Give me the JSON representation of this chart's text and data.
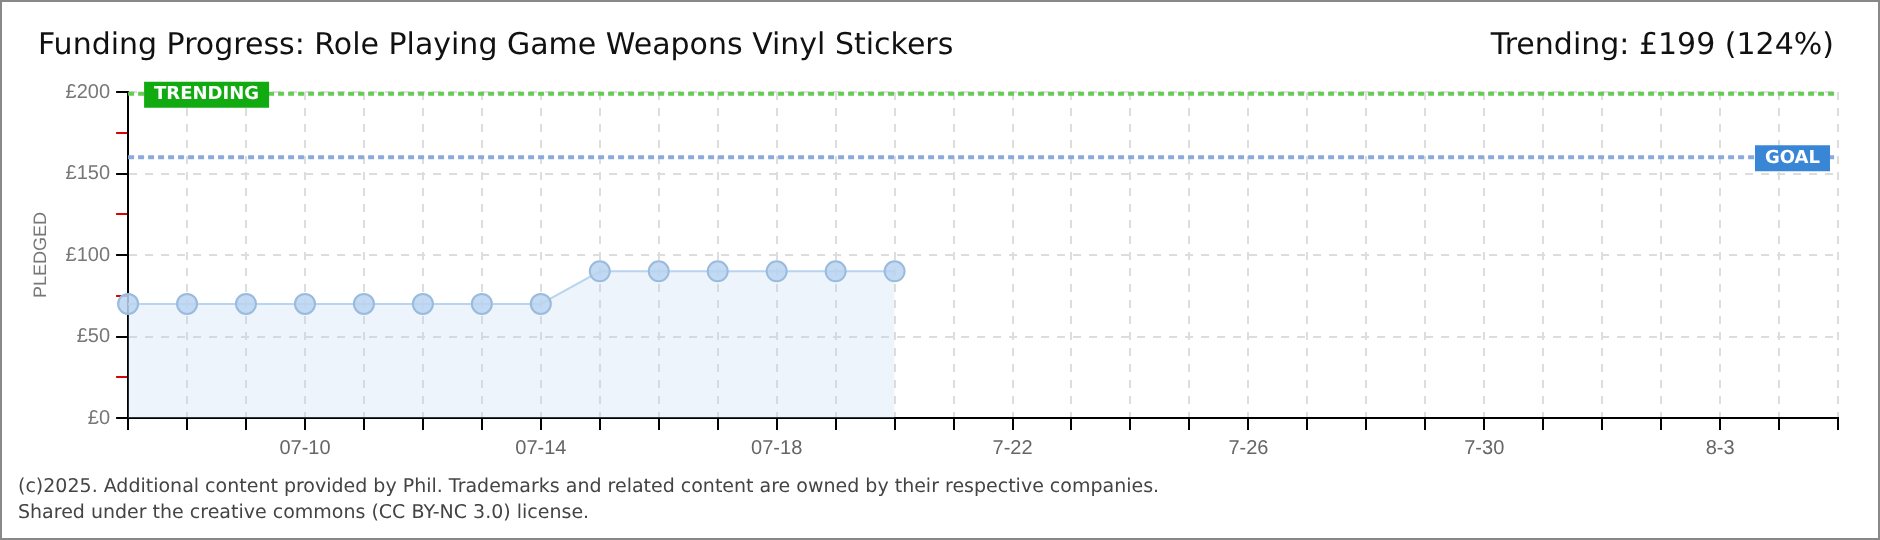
{
  "chart_data": {
    "type": "area",
    "title": "Funding Progress: Role Playing Game Weapons Vinyl Stickers",
    "subtitle": "Trending: £199 (124%)",
    "ylabel": "PLEDGED",
    "categories": [
      null,
      null,
      null,
      "07-10",
      null,
      null,
      null,
      "07-14",
      null,
      null,
      null,
      "07-18",
      null,
      null,
      null,
      "7-22",
      null,
      null,
      null,
      "7-26",
      null,
      null,
      null,
      "7-30",
      null,
      null,
      null,
      "8-3",
      null,
      null
    ],
    "series": [
      {
        "color": "#b8d4f0",
        "values": [
          70,
          70,
          70,
          70,
          70,
          70,
          70,
          70,
          90,
          90,
          90,
          90,
          90,
          90,
          null,
          null,
          null,
          null,
          null,
          null,
          null,
          null,
          null,
          null,
          null,
          null,
          null,
          null,
          null,
          null
        ]
      }
    ],
    "ylim": [
      0,
      200
    ],
    "yticks": [
      {
        "value": 0,
        "label": "£0"
      },
      {
        "value": 25,
        "label": null
      },
      {
        "value": 50,
        "label": "£50"
      },
      {
        "value": 75,
        "label": null
      },
      {
        "value": 100,
        "label": "£100"
      },
      {
        "value": 125,
        "label": null
      },
      {
        "value": 150,
        "label": "£150"
      },
      {
        "value": 175,
        "label": null
      },
      {
        "value": 200,
        "label": "£200"
      }
    ],
    "ref_lines": [
      {
        "axis": "y",
        "value": 199,
        "label": "TRENDING",
        "color": "#66cc55",
        "line_style": "dotted"
      },
      {
        "axis": "y",
        "value": 160,
        "label": "GOAL",
        "color": "#88aadd",
        "line_style": "dotted"
      }
    ],
    "grid": true,
    "legend": false,
    "marker": "circle",
    "line_style": "solid",
    "annotations": [
      "(c)2025. Additional content provided by Phil. Trademarks and related content are owned by their respective companies.",
      "Shared under the creative commons (CC BY-NC 3.0) license."
    ]
  }
}
